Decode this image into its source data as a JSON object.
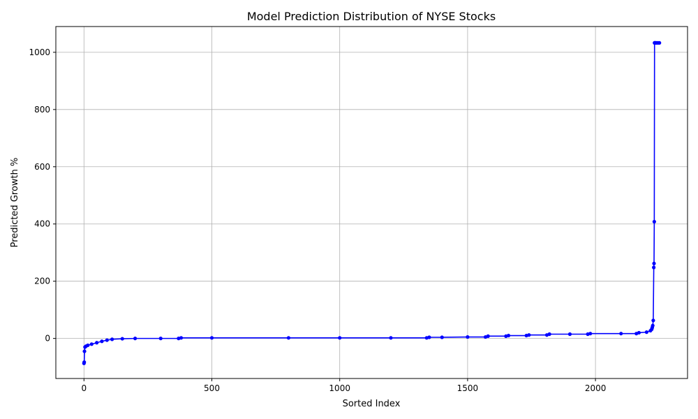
{
  "chart_data": {
    "type": "line",
    "title": "Model Prediction Distribution of NYSE Stocks",
    "xlabel": "Sorted Index",
    "ylabel": "Predicted Growth %",
    "xlim": [
      -110,
      2360
    ],
    "ylim": [
      -140,
      1090
    ],
    "xticks": [
      0,
      500,
      1000,
      1500,
      2000
    ],
    "yticks": [
      0,
      200,
      400,
      600,
      800,
      1000
    ],
    "grid": true,
    "line_color": "#0000ff",
    "marker": "circle",
    "series": [
      {
        "name": "",
        "x": [
          0,
          1,
          2,
          4,
          8,
          15,
          30,
          50,
          70,
          90,
          110,
          150,
          200,
          300,
          370,
          380,
          500,
          800,
          1000,
          1200,
          1340,
          1350,
          1400,
          1500,
          1570,
          1580,
          1650,
          1660,
          1730,
          1740,
          1810,
          1820,
          1900,
          1970,
          1980,
          2100,
          2160,
          2170,
          2200,
          2215,
          2220,
          2222,
          2224,
          2226,
          2228,
          2229,
          2230,
          2231,
          2232,
          2233,
          2236,
          2240,
          2245,
          2250
        ],
        "y": [
          -87,
          -83,
          -45,
          -30,
          -27,
          -24,
          -20,
          -15,
          -10,
          -6,
          -3,
          -1,
          0,
          0,
          0,
          2,
          2,
          2,
          2,
          2,
          2,
          4,
          4,
          5,
          5,
          8,
          8,
          10,
          10,
          12,
          12,
          15,
          15,
          15,
          17,
          17,
          17,
          20,
          22,
          27,
          32,
          38,
          45,
          63,
          248,
          262,
          408,
          1033,
          1033,
          1033,
          1033,
          1033,
          1033,
          1033
        ]
      }
    ]
  }
}
